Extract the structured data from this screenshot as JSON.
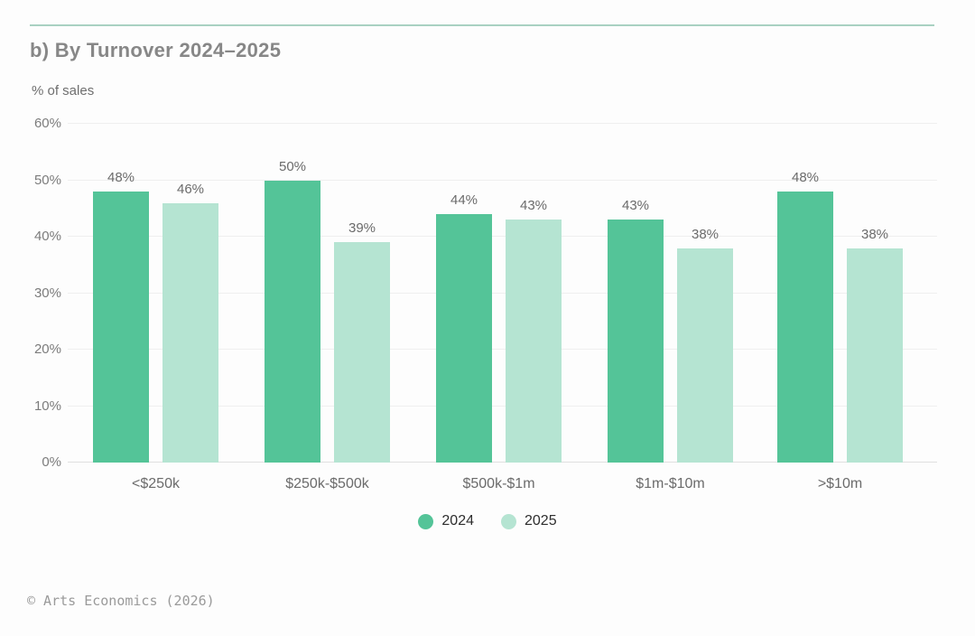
{
  "page": {
    "footer": "© Arts Economics (2026)"
  },
  "chart_data": {
    "type": "bar",
    "title": "b) By Turnover 2024–2025",
    "ylabel": "% of sales",
    "xlabel": "",
    "categories": [
      "<$250k",
      "$250k-$500k",
      "$500k-$1m",
      "$1m-$10m",
      ">$10m"
    ],
    "series": [
      {
        "name": "2024",
        "color": "#54c498",
        "values": [
          48,
          50,
          44,
          43,
          48
        ]
      },
      {
        "name": "2025",
        "color": "#b5e4d2",
        "values": [
          46,
          39,
          43,
          38,
          38
        ]
      }
    ],
    "ylim": [
      0,
      60
    ],
    "yticks": [
      0,
      10,
      20,
      30,
      40,
      50,
      60
    ],
    "tick_suffix": "%",
    "value_label_suffix": "%",
    "grid": true,
    "value_labels": true,
    "legend_position": "bottom"
  },
  "colors": {
    "top_rule": "#a9d1c2",
    "grid": "#efefef",
    "baseline": "#e0e0e0",
    "title": "#878787",
    "axis_text": "#7c7c7c",
    "label_text": "#6b6b6b",
    "legend_text": "#2e2e2e",
    "footer_text": "#9a9a9a"
  }
}
